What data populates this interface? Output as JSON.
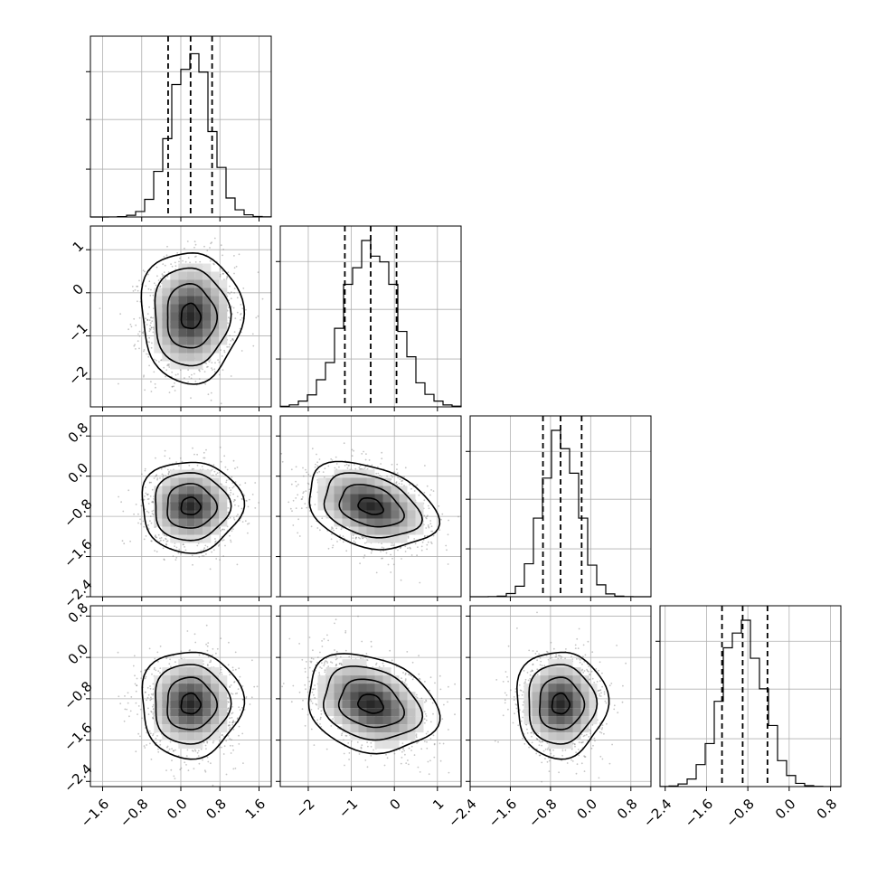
{
  "chart_data": {
    "type": "corner",
    "parameters": 4,
    "quantile_lines": [
      0.16,
      0.5,
      0.84
    ],
    "grid": true,
    "colors": {
      "ink": "#000000",
      "grid": "#b0b0b0",
      "scatter": "#7f7f7f"
    },
    "axes": [
      {
        "range": [
          -1.85,
          1.85
        ],
        "ticks": [
          -1.6,
          -0.8,
          0.0,
          0.8,
          1.6
        ],
        "tick_labels": [
          "−1.6",
          "−0.8",
          "0.0",
          "0.8",
          "1.6"
        ],
        "mean": 0.2,
        "sd": 0.4,
        "quantiles": [
          -0.26,
          0.2,
          0.64
        ]
      },
      {
        "range": [
          -2.65,
          1.55
        ],
        "ticks": [
          -2,
          -1,
          0,
          1
        ],
        "tick_labels": [
          "−2",
          "−1",
          "0",
          "1"
        ],
        "mean": -0.55,
        "sd": 0.6,
        "quantiles": [
          -1.15,
          -0.55,
          0.05
        ]
      },
      {
        "range": [
          -2.4,
          1.2
        ],
        "ticks": [
          -2.4,
          -1.6,
          -0.8,
          0.0,
          0.8
        ],
        "tick_labels": [
          "−2.4",
          "−1.6",
          "−0.8",
          "0.0",
          "0.8"
        ],
        "mean": -0.6,
        "sd": 0.35,
        "quantiles": [
          -0.95,
          -0.6,
          -0.18
        ]
      },
      {
        "range": [
          -2.5,
          1.0
        ],
        "ticks": [
          -2.4,
          -1.6,
          -0.8,
          0.0,
          0.8
        ],
        "tick_labels": [
          "−2.4",
          "−1.6",
          "−0.8",
          "0.0",
          "0.8"
        ],
        "mean": -0.9,
        "sd": 0.4,
        "quantiles": [
          -1.3,
          -0.9,
          -0.42
        ]
      }
    ]
  }
}
